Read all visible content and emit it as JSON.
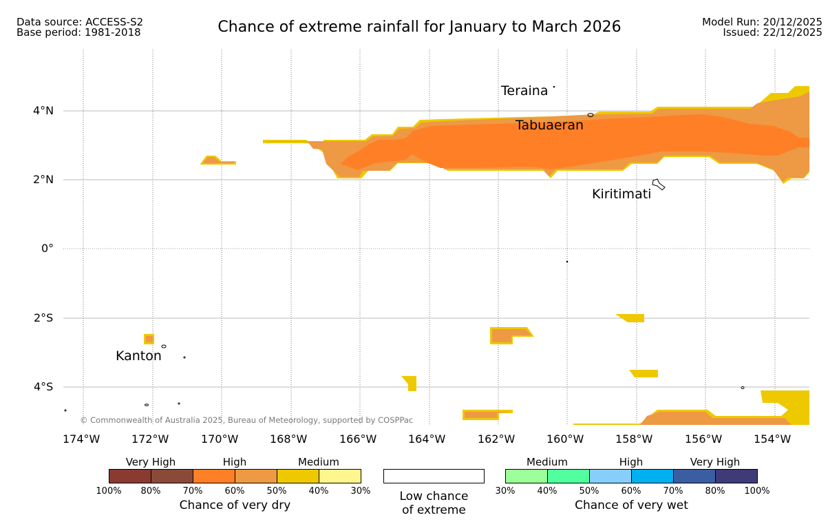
{
  "header": {
    "data_source": "Data source: ACCESS-S2",
    "base_period": "Base period: 1981-2018",
    "title": "Chance of extreme rainfall for January to March 2026",
    "model_run": "Model Run: 20/12/2025",
    "issued": "Issued: 22/12/2025"
  },
  "map": {
    "lon_labels": [
      "174°W",
      "172°W",
      "170°W",
      "168°W",
      "166°W",
      "164°W",
      "162°W",
      "160°W",
      "158°W",
      "156°W",
      "154°W"
    ],
    "lat_labels": [
      "4°N",
      "2°N",
      "0°",
      "2°S",
      "4°S"
    ],
    "places": {
      "teraina": "Teraina",
      "tabuaeran": "Tabuaeran",
      "kiritimati": "Kiritimati",
      "kanton": "Kanton"
    },
    "copyright": "© Commonwealth of Australia 2025, Bureau of Meteorology, supported by COSPPac"
  },
  "legend": {
    "dry": {
      "levels": [
        "Very High",
        "High",
        "Medium"
      ],
      "colors": [
        "#8b3a32",
        "#8a4a3a",
        "#ff7f27",
        "#ee9944",
        "#eec900",
        "#fff68f"
      ],
      "ticks": [
        "100%",
        "80%",
        "70%",
        "60%",
        "50%",
        "40%",
        "30%"
      ],
      "caption": "Chance of very dry"
    },
    "low": {
      "caption_line1": "Low chance",
      "caption_line2": "of extreme"
    },
    "wet": {
      "levels": [
        "Medium",
        "High",
        "Very High"
      ],
      "colors": [
        "#9cff99",
        "#52ff9e",
        "#87cefa",
        "#00b0f0",
        "#3b5ea2",
        "#3f3a78"
      ],
      "ticks": [
        "30%",
        "40%",
        "50%",
        "60%",
        "70%",
        "80%",
        "100%"
      ],
      "caption": "Chance of very wet"
    }
  }
}
